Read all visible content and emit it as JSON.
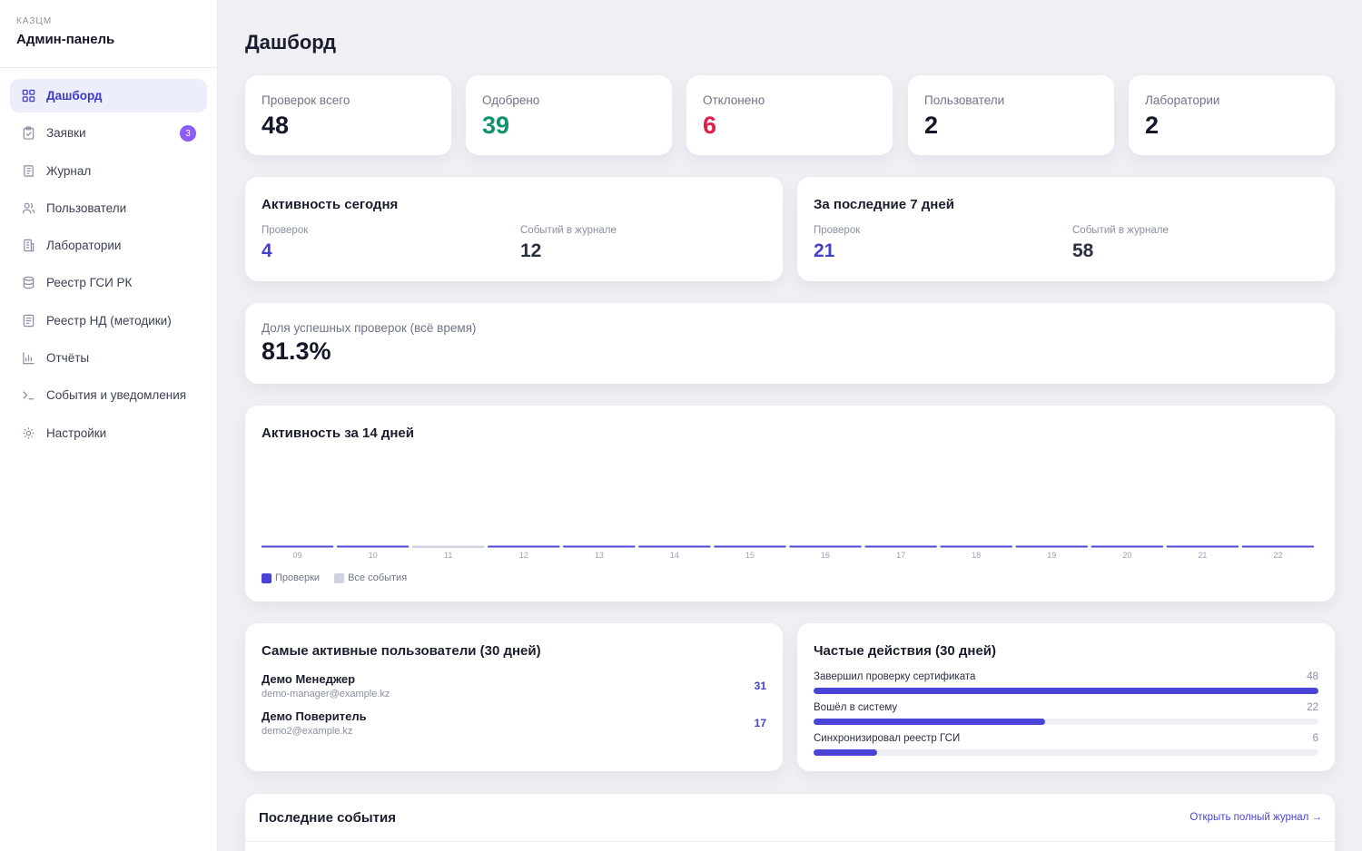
{
  "sidebar": {
    "org": "КАЗЦМ",
    "title": "Админ-панель",
    "items": [
      {
        "label": "Дашборд",
        "icon": "grid-icon",
        "active": true
      },
      {
        "label": "Заявки",
        "icon": "clipboard-icon",
        "badge": "3"
      },
      {
        "label": "Журнал",
        "icon": "journal-icon"
      },
      {
        "label": "Пользователи",
        "icon": "users-icon"
      },
      {
        "label": "Лаборатории",
        "icon": "building-icon"
      },
      {
        "label": "Реестр ГСИ РК",
        "icon": "database-icon"
      },
      {
        "label": "Реестр НД (методики)",
        "icon": "document-icon"
      },
      {
        "label": "Отчёты",
        "icon": "bar-chart-icon"
      },
      {
        "label": "События и уведомления",
        "icon": "terminal-icon"
      },
      {
        "label": "Настройки",
        "icon": "gear-icon"
      }
    ]
  },
  "page": {
    "title": "Дашборд"
  },
  "stats": [
    {
      "label": "Проверок всего",
      "value": "48",
      "color": "#151829"
    },
    {
      "label": "Одобрено",
      "value": "39",
      "color": "#10936a"
    },
    {
      "label": "Отклонено",
      "value": "6",
      "color": "#e11d48"
    },
    {
      "label": "Пользователи",
      "value": "2",
      "color": "#151829"
    },
    {
      "label": "Лаборатории",
      "value": "2",
      "color": "#151829"
    }
  ],
  "today": {
    "title": "Активность сегодня",
    "checks_label": "Проверок",
    "checks_value": "4",
    "events_label": "Событий в журнале",
    "events_value": "12"
  },
  "week": {
    "title": "За последние 7 дней",
    "checks_label": "Проверок",
    "checks_value": "21",
    "events_label": "Событий в журнале",
    "events_value": "58"
  },
  "success": {
    "label": "Доля успешных проверок (всё время)",
    "value": "81.3%"
  },
  "activity14": {
    "title": "Активность за 14 дней",
    "legend_checks": "Проверки",
    "legend_all": "Все события",
    "colors": {
      "checks": "#4a44d6",
      "all": "#cfd3e0"
    }
  },
  "chart_data": {
    "type": "bar",
    "title": "Активность за 14 дней",
    "categories": [
      "09",
      "10",
      "11",
      "12",
      "13",
      "14",
      "15",
      "16",
      "17",
      "18",
      "19",
      "20",
      "21",
      "22"
    ],
    "series": [
      {
        "name": "Проверки",
        "values": [
          1,
          1,
          0,
          1,
          1,
          1,
          1,
          1,
          1,
          1,
          1,
          1,
          1,
          1
        ]
      },
      {
        "name": "Все события",
        "values": [
          1,
          1,
          1,
          1,
          1,
          1,
          1,
          1,
          1,
          1,
          1,
          1,
          1,
          1
        ]
      }
    ],
    "legend": "bottom-left",
    "grid": false
  },
  "top_users": {
    "title": "Самые активные пользователи (30 дней)",
    "users": [
      {
        "name": "Демо Менеджер",
        "email": "demo-manager@example.kz",
        "count": "31"
      },
      {
        "name": "Демо Поверитель",
        "email": "demo2@example.kz",
        "count": "17"
      }
    ]
  },
  "frequent": {
    "title": "Частые действия (30 дней)",
    "items": [
      {
        "label": "Завершил проверку сертификата",
        "count": "48",
        "fraction": 1.0
      },
      {
        "label": "Вошёл в систему",
        "count": "22",
        "fraction": 0.458
      },
      {
        "label": "Синхронизировал реестр ГСИ",
        "count": "6",
        "fraction": 0.125
      }
    ]
  },
  "recent": {
    "title": "Последние события",
    "link": "Открыть полный журнал →"
  }
}
